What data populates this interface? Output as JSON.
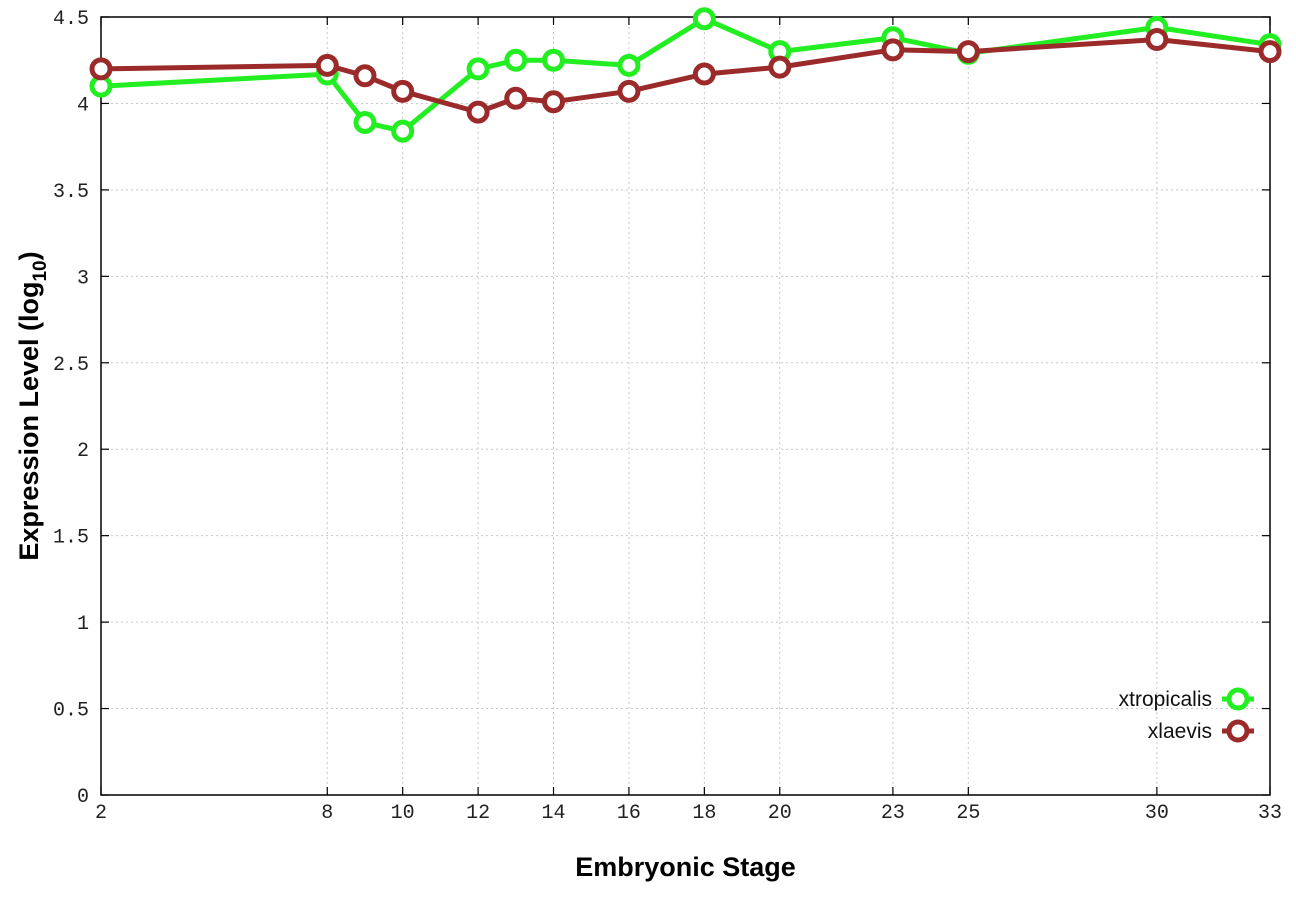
{
  "chart_data": {
    "type": "line",
    "xlabel": "Embryonic Stage",
    "ylabel_main": "Expression Level (log",
    "ylabel_sub": "10",
    "ylabel_close": ")",
    "xlim": [
      2,
      33
    ],
    "ylim": [
      0,
      4.5
    ],
    "x_ticks": [
      2,
      8,
      10,
      12,
      14,
      16,
      18,
      20,
      23,
      25,
      30,
      33
    ],
    "y_ticks": [
      0,
      0.5,
      1,
      1.5,
      2,
      2.5,
      3,
      3.5,
      4,
      4.5
    ],
    "y_tick_labels": [
      "0",
      "0.5",
      "1",
      "1.5",
      "2",
      "2.5",
      "3",
      "3.5",
      "4",
      "4.5"
    ],
    "grid": true,
    "legend_position": "bottom-right",
    "series": [
      {
        "name": "xtropicalis",
        "color": "#22ee22",
        "x": [
          2,
          8,
          9,
          10,
          12,
          13,
          14,
          16,
          18,
          20,
          23,
          25,
          30,
          33
        ],
        "y": [
          4.1,
          4.17,
          3.89,
          3.84,
          4.2,
          4.25,
          4.25,
          4.22,
          4.49,
          4.3,
          4.38,
          4.29,
          4.44,
          4.34
        ]
      },
      {
        "name": "xlaevis",
        "color": "#9b2a2a",
        "x": [
          2,
          8,
          9,
          10,
          12,
          13,
          14,
          16,
          18,
          20,
          23,
          25,
          30,
          33
        ],
        "y": [
          4.2,
          4.22,
          4.16,
          4.07,
          3.95,
          4.03,
          4.01,
          4.07,
          4.17,
          4.21,
          4.31,
          4.3,
          4.37,
          4.3
        ]
      }
    ]
  }
}
